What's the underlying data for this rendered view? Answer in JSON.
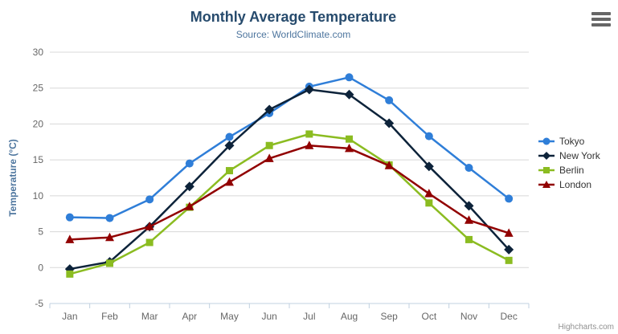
{
  "chart": {
    "credits_label": "Highcharts.com",
    "context_menu_icon": "hamburger-menu-icon"
  },
  "colors": {
    "background": "#ffffff",
    "title": "#274b6d",
    "subtitle": "#4d759e",
    "axis_title": "#4d759e",
    "axis_label": "#666666",
    "legend_text": "#333333",
    "gridline": "#d8d8d8",
    "axis_line": "#c0d0e0",
    "credits": "#909090",
    "menu_icon": "#666666"
  },
  "chart_data": {
    "type": "line",
    "title": "Monthly Average Temperature",
    "subtitle": "Source: WorldClimate.com",
    "categories": [
      "Jan",
      "Feb",
      "Mar",
      "Apr",
      "May",
      "Jun",
      "Jul",
      "Aug",
      "Sep",
      "Oct",
      "Nov",
      "Dec"
    ],
    "xlabel": "",
    "ylabel": "Temperature (°C)",
    "ylim": [
      -5,
      30
    ],
    "yticks": [
      -5,
      0,
      5,
      10,
      15,
      20,
      25,
      30
    ],
    "grid": true,
    "legend_position": "right-middle",
    "series": [
      {
        "name": "Tokyo",
        "color": "#2f7ed8",
        "marker": "circle",
        "values": [
          7.0,
          6.9,
          9.5,
          14.5,
          18.2,
          21.5,
          25.2,
          26.5,
          23.3,
          18.3,
          13.9,
          9.6
        ]
      },
      {
        "name": "New York",
        "color": "#0d233a",
        "marker": "diamond",
        "values": [
          -0.2,
          0.8,
          5.7,
          11.3,
          17.0,
          22.0,
          24.8,
          24.1,
          20.1,
          14.1,
          8.6,
          2.5
        ]
      },
      {
        "name": "Berlin",
        "color": "#8bbc21",
        "marker": "square",
        "values": [
          -0.9,
          0.6,
          3.5,
          8.4,
          13.5,
          17.0,
          18.6,
          17.9,
          14.3,
          9.0,
          3.9,
          1.0
        ]
      },
      {
        "name": "London",
        "color": "#910000",
        "marker": "triangle",
        "values": [
          3.9,
          4.2,
          5.7,
          8.5,
          11.9,
          15.2,
          17.0,
          16.6,
          14.2,
          10.3,
          6.6,
          4.8
        ]
      }
    ]
  }
}
